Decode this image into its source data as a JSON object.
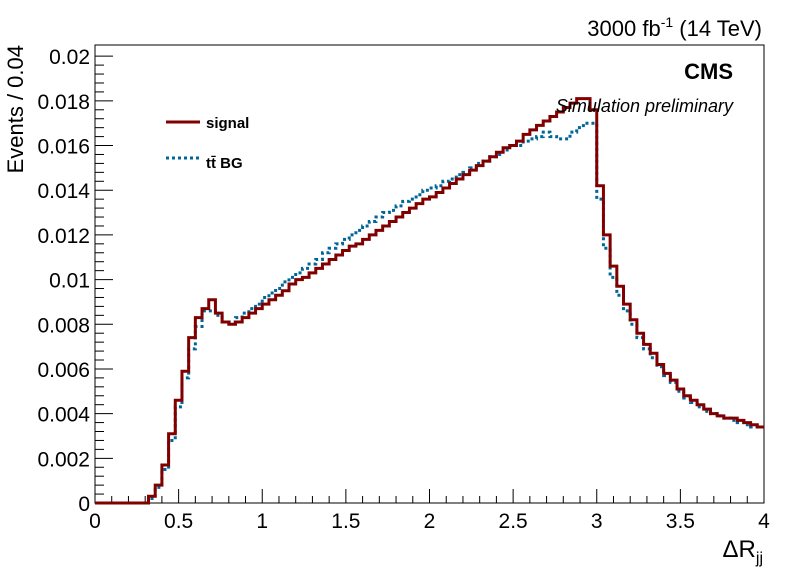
{
  "chart_data": {
    "type": "line",
    "style": "step-histogram",
    "header_right": "3000 fb⁻¹ (14 TeV)",
    "cms_label": "CMS",
    "cms_sublabel": "Simulation preliminary",
    "xlabel": "ΔRjj",
    "ylabel": "Events / 0.04",
    "xlim": [
      0,
      4
    ],
    "ylim": [
      0,
      0.0205
    ],
    "bin_width": 0.04,
    "x_ticks": [
      "0",
      "0.5",
      "1",
      "1.5",
      "2",
      "2.5",
      "3",
      "3.5",
      "4"
    ],
    "y_ticks": [
      "0",
      "0.002",
      "0.004",
      "0.006",
      "0.008",
      "0.01",
      "0.012",
      "0.014",
      "0.016",
      "0.018",
      "0.02"
    ],
    "legend_position": "top-left",
    "series": [
      {
        "name": "signal",
        "color": "#800000",
        "line_style": "solid",
        "values": [
          0,
          0,
          0,
          0,
          0,
          0,
          0,
          0,
          0.0003,
          0.0008,
          0.0017,
          0.0031,
          0.0046,
          0.0059,
          0.0074,
          0.0083,
          0.0087,
          0.0091,
          0.0085,
          0.0081,
          0.008,
          0.0081,
          0.0083,
          0.0085,
          0.0087,
          0.0089,
          0.0091,
          0.0093,
          0.0095,
          0.0098,
          0.01,
          0.0101,
          0.0103,
          0.0105,
          0.0107,
          0.0109,
          0.0111,
          0.0113,
          0.0115,
          0.0116,
          0.0118,
          0.012,
          0.0122,
          0.0124,
          0.0126,
          0.0128,
          0.013,
          0.0132,
          0.0134,
          0.0136,
          0.0137,
          0.0139,
          0.0141,
          0.0143,
          0.0145,
          0.0147,
          0.0149,
          0.0151,
          0.0153,
          0.0155,
          0.0157,
          0.0159,
          0.016,
          0.0162,
          0.0165,
          0.0167,
          0.0169,
          0.0171,
          0.0173,
          0.0175,
          0.0177,
          0.0179,
          0.0181,
          0.0181,
          0.0176,
          0.0142,
          0.012,
          0.0106,
          0.0097,
          0.0089,
          0.0082,
          0.0076,
          0.0071,
          0.0067,
          0.0062,
          0.0058,
          0.0055,
          0.0051,
          0.0048,
          0.0046,
          0.0044,
          0.0042,
          0.004,
          0.0039,
          0.0038,
          0.0038,
          0.0037,
          0.0036,
          0.0035,
          0.0034
        ]
      },
      {
        "name": "tt̄ BG",
        "color": "#006699",
        "line_style": "dotted",
        "values": [
          0,
          0,
          0,
          0,
          0,
          0,
          0,
          0,
          0.0002,
          0.0007,
          0.0015,
          0.0028,
          0.0043,
          0.0056,
          0.0069,
          0.0079,
          0.0086,
          0.0086,
          0.0084,
          0.0081,
          0.0081,
          0.0083,
          0.0085,
          0.0087,
          0.0089,
          0.0092,
          0.0094,
          0.0096,
          0.0099,
          0.0101,
          0.0103,
          0.0105,
          0.0107,
          0.0109,
          0.0112,
          0.0114,
          0.0116,
          0.0118,
          0.012,
          0.0122,
          0.0124,
          0.0126,
          0.0128,
          0.013,
          0.0131,
          0.0133,
          0.0135,
          0.0136,
          0.0138,
          0.014,
          0.0141,
          0.0142,
          0.0144,
          0.0145,
          0.0147,
          0.0148,
          0.015,
          0.0152,
          0.0153,
          0.0155,
          0.0156,
          0.0158,
          0.016,
          0.016,
          0.0162,
          0.0163,
          0.0164,
          0.0166,
          0.0164,
          0.0163,
          0.0163,
          0.0166,
          0.0168,
          0.017,
          0.017,
          0.0136,
          0.0114,
          0.0101,
          0.0093,
          0.0086,
          0.008,
          0.0074,
          0.0069,
          0.0065,
          0.0061,
          0.0057,
          0.0054,
          0.005,
          0.0047,
          0.0045,
          0.0043,
          0.0041,
          0.004,
          0.0039,
          0.0038,
          0.0037,
          0.0036,
          0.0035,
          0.0034,
          0.0034
        ]
      }
    ]
  }
}
